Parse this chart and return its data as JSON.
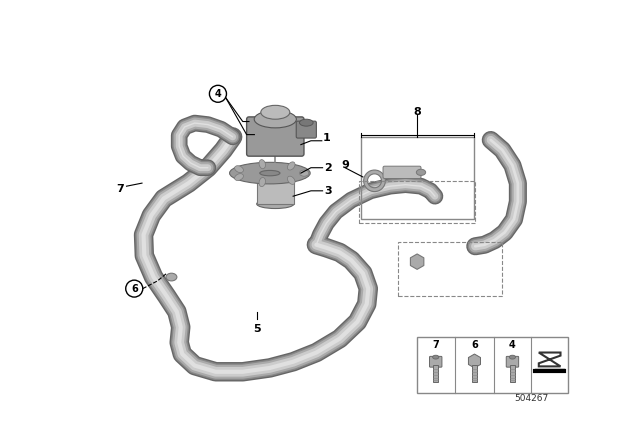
{
  "bg_color": "#ffffff",
  "fig_width": 6.4,
  "fig_height": 4.48,
  "diagram_number": "504267",
  "tube_color_dark": "#888888",
  "tube_color_mid": "#aaaaaa",
  "tube_color_light": "#cccccc",
  "tube_color_highlight": "#dddddd",
  "pump_color_dark": "#777777",
  "pump_color_mid": "#999999",
  "pump_color_light": "#bbbbbb",
  "label_font": 8,
  "small_font": 7
}
